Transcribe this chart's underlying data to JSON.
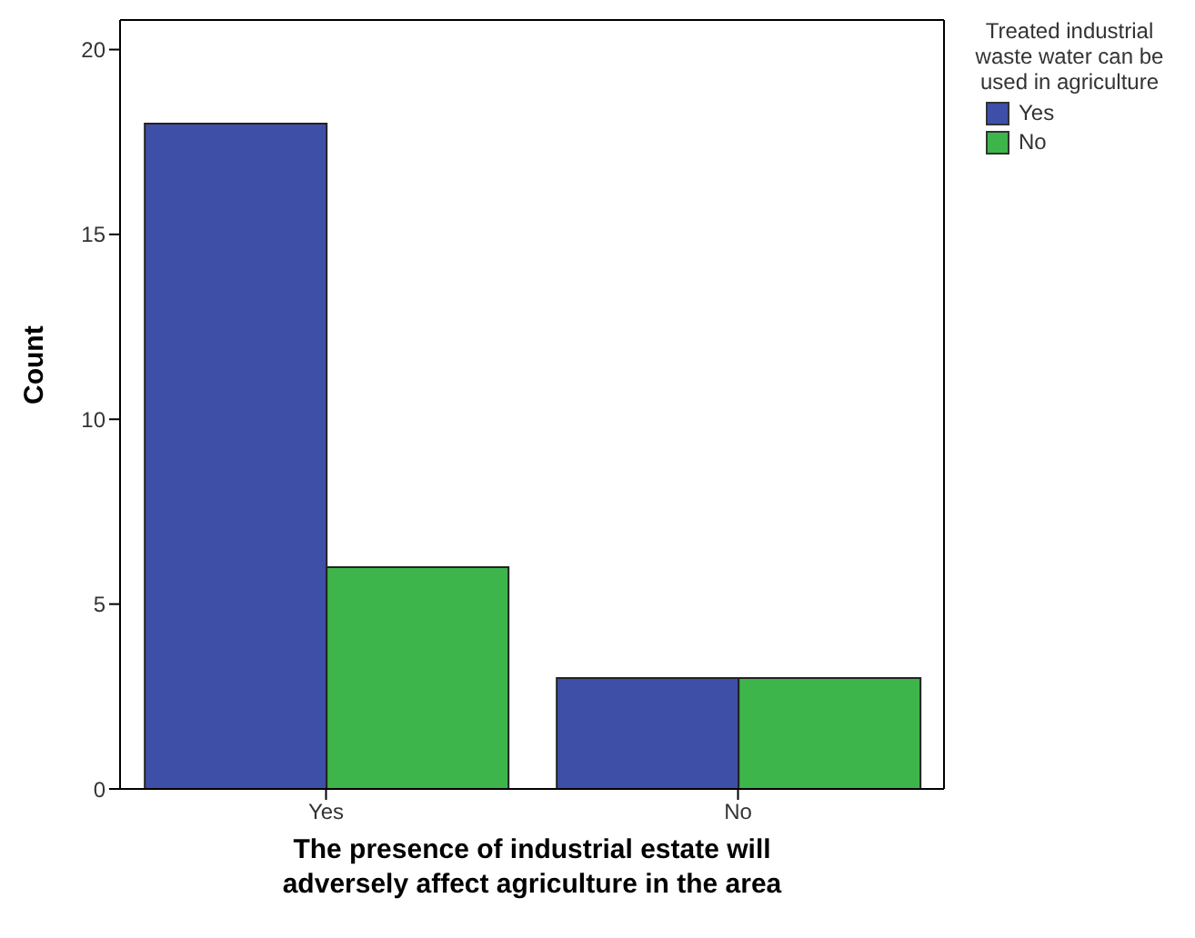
{
  "chart_data": {
    "type": "bar",
    "xlabel": "The presence of industrial estate will adversely affect agriculture in the area",
    "ylabel": "Count",
    "legend_title": "Treated industrial waste water can be used in agriculture",
    "categories": [
      "Yes",
      "No"
    ],
    "series": [
      {
        "name": "Yes",
        "color": "#3e4fa8",
        "values": [
          18,
          3
        ]
      },
      {
        "name": "No",
        "color": "#3db54a",
        "values": [
          6,
          3
        ]
      }
    ],
    "ylim": [
      0,
      20.8
    ],
    "yticks": [
      0,
      5,
      10,
      15,
      20
    ],
    "grid": false,
    "legend": "top right"
  }
}
